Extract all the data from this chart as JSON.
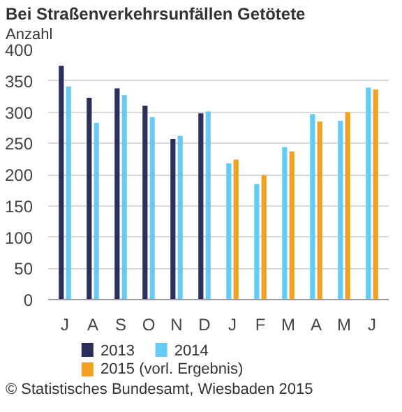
{
  "chart_data": {
    "type": "bar",
    "title": "Bei Straßenverkehrsunfällen Getötete",
    "ylabel": "Anzahl",
    "categories": [
      "J",
      "A",
      "S",
      "O",
      "N",
      "D",
      "J",
      "F",
      "M",
      "A",
      "M",
      "J"
    ],
    "series": [
      {
        "name": "2013",
        "color": "#2b2d5c",
        "values": [
          374,
          323,
          338,
          310,
          257,
          298,
          null,
          null,
          null,
          null,
          null,
          null
        ]
      },
      {
        "name": "2014",
        "color": "#66ccf5",
        "values": [
          341,
          283,
          327,
          292,
          262,
          301,
          218,
          185,
          244,
          297,
          286,
          339
        ]
      },
      {
        "name": "2015 (vorl. Ergebnis)",
        "color": "#f4a11d",
        "values": [
          null,
          null,
          null,
          null,
          null,
          null,
          224,
          199,
          237,
          285,
          300,
          336
        ]
      }
    ],
    "ylim": [
      0,
      400
    ],
    "yticks": [
      0,
      50,
      100,
      150,
      200,
      250,
      300,
      350,
      400
    ],
    "grid": "y",
    "legend": "bottom",
    "annotations": [
      "© Statistisches Bundesamt, Wiesbaden 2015"
    ]
  }
}
